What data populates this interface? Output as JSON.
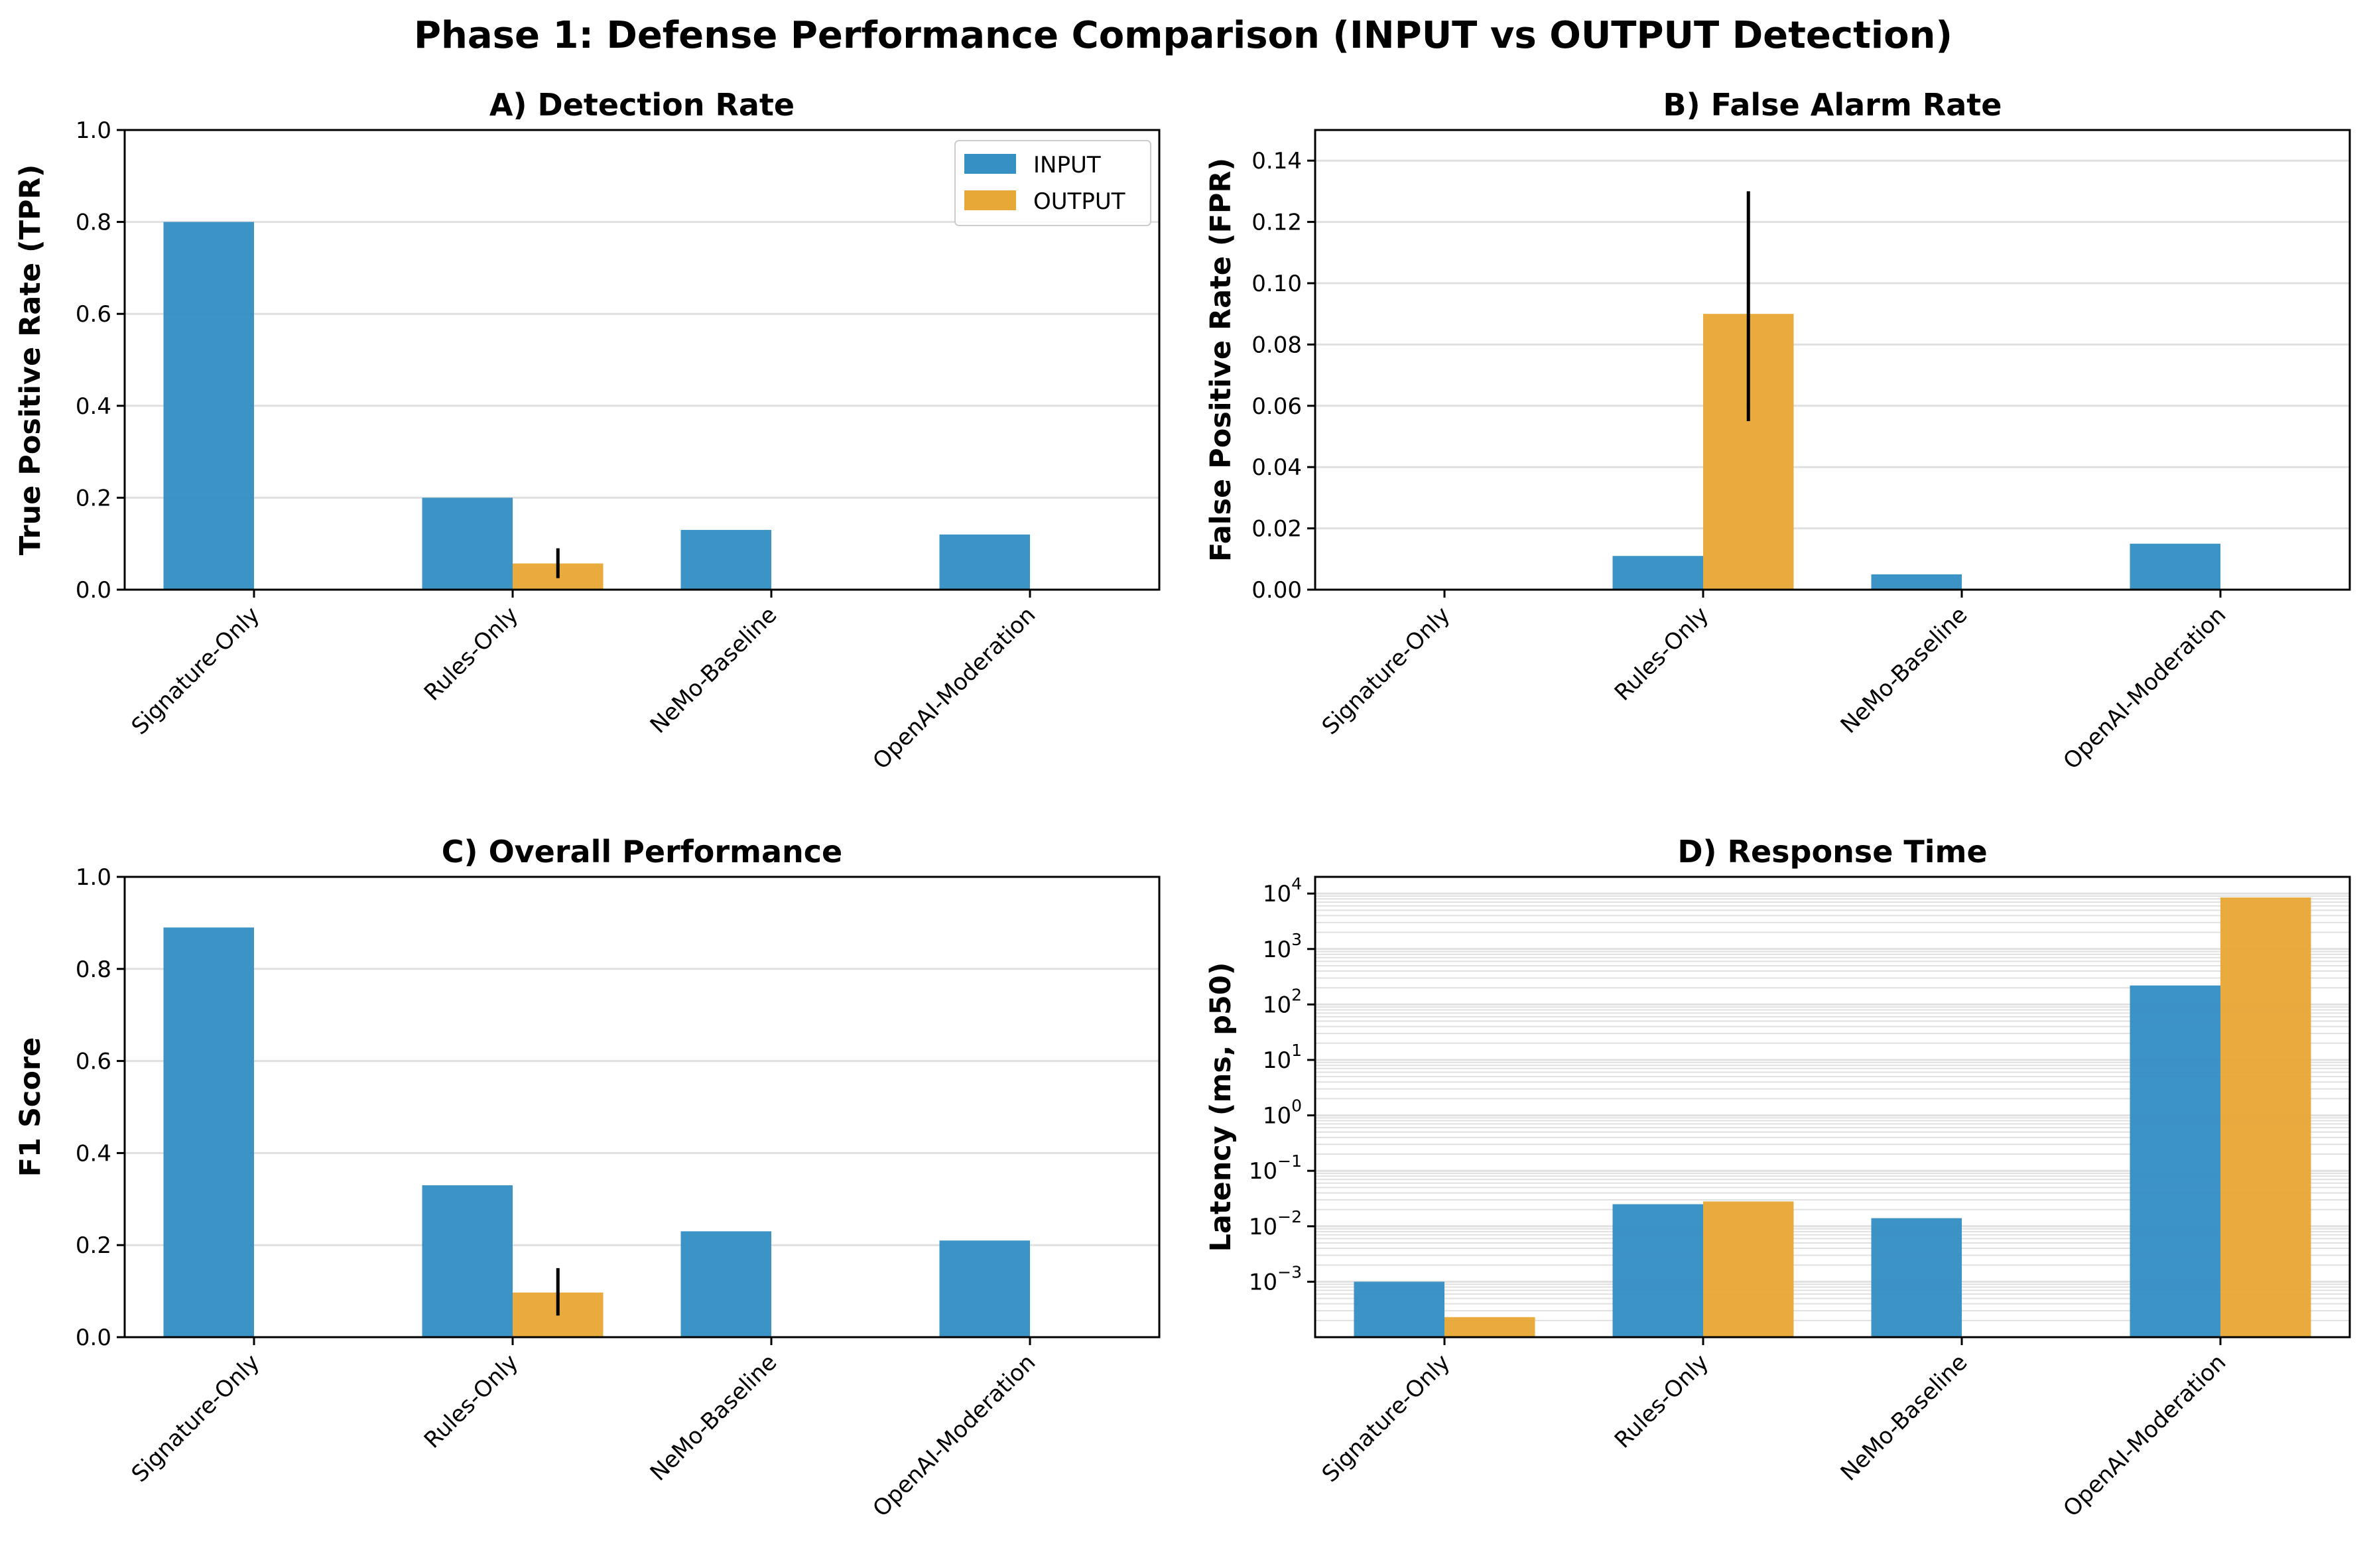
{
  "figure": {
    "title": "Phase 1: Defense Performance Comparison (INPUT vs OUTPUT Detection)"
  },
  "colors": {
    "input": "#3690C3",
    "output": "#E8A838",
    "grid": "#E0E0E0",
    "errorbar": "#000000"
  },
  "legend": {
    "placement": "upper-right of panel A",
    "entries": [
      "INPUT",
      "OUTPUT"
    ]
  },
  "chart_data": [
    {
      "panel": "A",
      "type": "bar",
      "title": "A) Detection Rate",
      "ylabel": "True Positive Rate (TPR)",
      "categories": [
        "Signature-Only",
        "Rules-Only",
        "NeMo-Baseline",
        "OpenAI-Moderation"
      ],
      "series": [
        {
          "name": "INPUT",
          "values": [
            0.8,
            0.2,
            0.13,
            0.12
          ]
        },
        {
          "name": "OUTPUT",
          "values": [
            0,
            0.057,
            0,
            0
          ],
          "errors": [
            null,
            [
              0.025,
              0.09
            ],
            null,
            null
          ]
        }
      ],
      "ylim": [
        0,
        1.0
      ],
      "yticks": [
        "0.0",
        "0.2",
        "0.4",
        "0.6",
        "0.8",
        "1.0"
      ],
      "grid": "y"
    },
    {
      "panel": "B",
      "type": "bar",
      "title": "B) False Alarm Rate",
      "ylabel": "False Positive Rate (FPR)",
      "categories": [
        "Signature-Only",
        "Rules-Only",
        "NeMo-Baseline",
        "OpenAI-Moderation"
      ],
      "series": [
        {
          "name": "INPUT",
          "values": [
            0,
            0.011,
            0.005,
            0.015
          ]
        },
        {
          "name": "OUTPUT",
          "values": [
            0,
            0.09,
            0,
            0
          ],
          "errors": [
            null,
            [
              0.055,
              0.13
            ],
            null,
            null
          ]
        }
      ],
      "ylim": [
        0,
        0.15
      ],
      "yticks": [
        "0.00",
        "0.02",
        "0.04",
        "0.06",
        "0.08",
        "0.10",
        "0.12",
        "0.14"
      ],
      "grid": "y"
    },
    {
      "panel": "C",
      "type": "bar",
      "title": "C) Overall Performance",
      "ylabel": "F1 Score",
      "categories": [
        "Signature-Only",
        "Rules-Only",
        "NeMo-Baseline",
        "OpenAI-Moderation"
      ],
      "series": [
        {
          "name": "INPUT",
          "values": [
            0.89,
            0.33,
            0.23,
            0.21
          ]
        },
        {
          "name": "OUTPUT",
          "values": [
            0,
            0.097,
            0,
            0
          ],
          "errors": [
            null,
            [
              0.047,
              0.15
            ],
            null,
            null
          ]
        }
      ],
      "ylim": [
        0,
        1.0
      ],
      "yticks": [
        "0.0",
        "0.2",
        "0.4",
        "0.6",
        "0.8",
        "1.0"
      ],
      "grid": "y"
    },
    {
      "panel": "D",
      "type": "bar",
      "title": "D) Response Time",
      "ylabel": "Latency (ms, p50)",
      "scale": "log",
      "categories": [
        "Signature-Only",
        "Rules-Only",
        "NeMo-Baseline",
        "OpenAI-Moderation"
      ],
      "series": [
        {
          "name": "INPUT",
          "values": [
            0.001,
            0.025,
            0.014,
            220
          ]
        },
        {
          "name": "OUTPUT",
          "values": [
            0.00023,
            0.028,
            null,
            8500
          ]
        }
      ],
      "ylim": [
        0.0001,
        20000
      ],
      "yticks": [
        "10",
        "10",
        "10",
        "10",
        "10",
        "10",
        "10",
        "10"
      ],
      "ytick_exponents": [
        "−3",
        "−2",
        "−1",
        "0",
        "1",
        "2",
        "3",
        "4"
      ],
      "grid": "y-major-and-minor"
    }
  ]
}
